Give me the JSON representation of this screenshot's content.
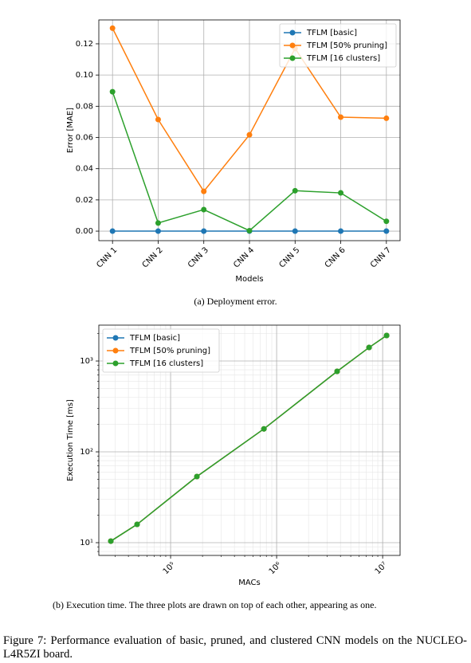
{
  "chart_data": [
    {
      "type": "line",
      "caption": "(a) Deployment error.",
      "xlabel": "Models",
      "ylabel": "Error [MAE]",
      "categories": [
        "CNN 1",
        "CNN 2",
        "CNN 3",
        "CNN 4",
        "CNN 5",
        "CNN 6",
        "CNN 7"
      ],
      "series": [
        {
          "name": "TFLM [basic]",
          "color": "#1f77b4",
          "values": [
            0,
            0,
            0,
            0,
            0,
            0,
            0
          ]
        },
        {
          "name": "TFLM [50% pruning]",
          "color": "#ff7f0e",
          "values": [
            0.13,
            0.0715,
            0.0255,
            0.0617,
            0.117,
            0.073,
            0.0723
          ]
        },
        {
          "name": "TFLM [16 clusters]",
          "color": "#2ca02c",
          "values": [
            0.0893,
            0.0052,
            0.0138,
            0.0003,
            0.0259,
            0.0245,
            0.0063
          ]
        }
      ],
      "ylim": [
        -0.0061,
        0.1353
      ],
      "yticks": [
        {
          "value": 0,
          "label": "0.00"
        },
        0.02,
        0.04,
        0.06,
        0.08,
        {
          "value": 0.1,
          "label": "0.10"
        },
        0.12
      ],
      "grid": true,
      "legend": "upper right"
    },
    {
      "type": "line",
      "caption": "(b) Execution time. The three plots are drawn on top of each other, appearing as one.",
      "xlabel": "MACs",
      "ylabel": "Execution Time [ms]",
      "xscale": "log",
      "yscale": "log",
      "x": [
        27300,
        48300,
        177000,
        759000,
        3720000,
        7450000,
        10900000
      ],
      "series": [
        {
          "name": "TFLM [basic]",
          "color": "#1f77b4",
          "values": [
            10.4,
            15.9,
            53.5,
            179,
            769,
            1409,
            1910
          ]
        },
        {
          "name": "TFLM [50% pruning]",
          "color": "#ff7f0e",
          "values": [
            10.4,
            15.9,
            53.5,
            179,
            769,
            1409,
            1910
          ]
        },
        {
          "name": "TFLM [16 clusters]",
          "color": "#2ca02c",
          "values": [
            10.4,
            15.9,
            53.5,
            179,
            769,
            1409,
            1910
          ]
        }
      ],
      "xlim": [
        21040,
        14600000
      ],
      "ylim": [
        7.24,
        2483
      ],
      "xticks": [
        {
          "value": 100000,
          "label": "10⁵"
        },
        {
          "value": 1000000,
          "label": "10⁶"
        },
        {
          "value": 10000000,
          "label": "10⁷"
        }
      ],
      "yticks": [
        {
          "value": 10,
          "label": "10¹"
        },
        {
          "value": 100,
          "label": "10²"
        },
        {
          "value": 1000,
          "label": "10³"
        }
      ],
      "xminorticks": [
        30000,
        40000,
        50000,
        60000,
        70000,
        80000,
        90000,
        200000,
        300000,
        400000,
        500000,
        600000,
        700000,
        800000,
        900000,
        2000000,
        3000000,
        4000000,
        5000000,
        6000000,
        7000000,
        8000000,
        9000000
      ],
      "yminorticks": [
        8,
        9,
        20,
        30,
        40,
        50,
        60,
        70,
        80,
        90,
        200,
        300,
        400,
        500,
        600,
        700,
        800,
        900,
        2000
      ],
      "grid": true,
      "legend": "upper left"
    }
  ],
  "figure_caption": "Figure 7: Performance evaluation of basic, pruned, and clustered CNN models on the NUCLEO-L4R5ZI board."
}
